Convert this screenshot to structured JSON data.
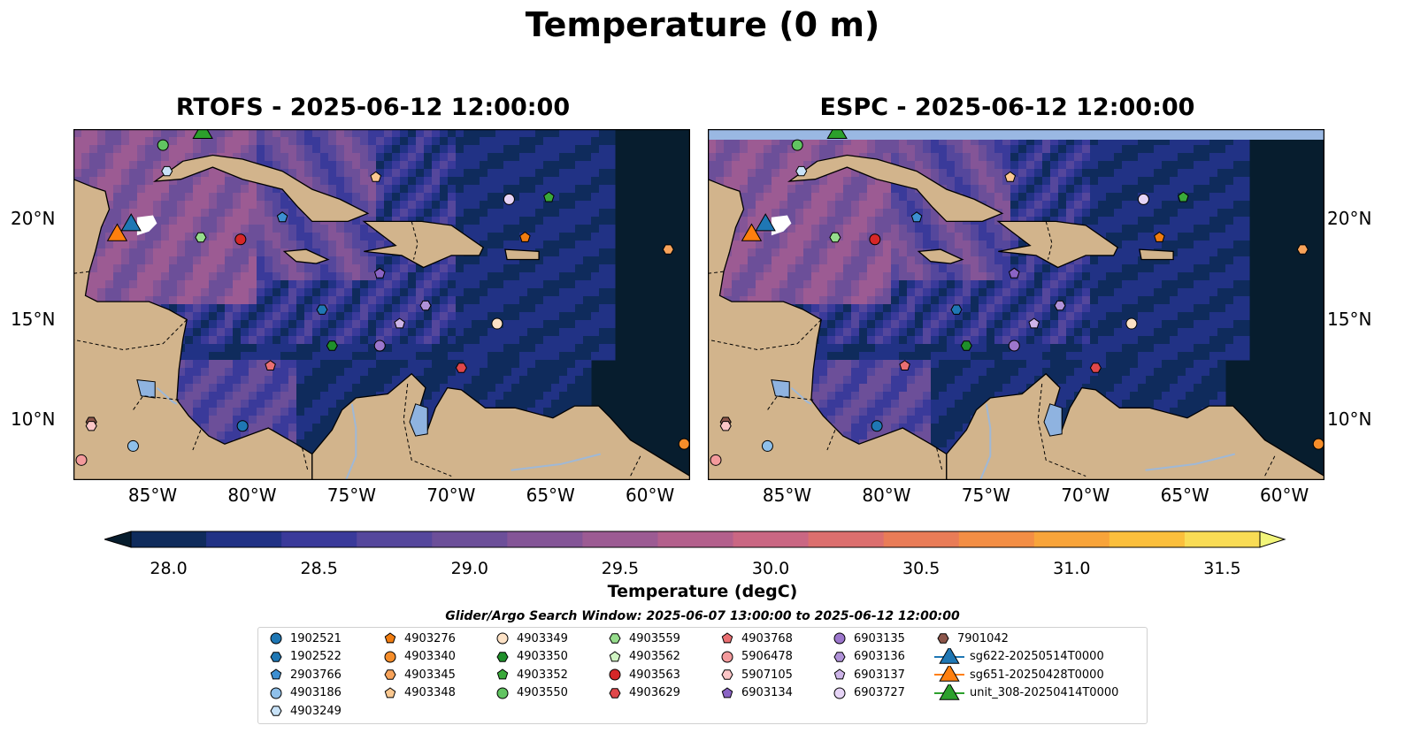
{
  "suptitle": "Temperature (0 m)",
  "panels": [
    {
      "title": "RTOFS - 2025-06-12 12:00:00",
      "left_lat_labels": true
    },
    {
      "title": "ESPC - 2025-06-12 12:00:00",
      "left_lat_labels": false
    }
  ],
  "lon_labels": [
    "85°W",
    "80°W",
    "75°W",
    "70°W",
    "65°W",
    "60°W"
  ],
  "lat_labels": [
    "20°N",
    "15°N",
    "10°N"
  ],
  "map_extent": {
    "lon": [
      -89,
      -58
    ],
    "lat": [
      7,
      24.5
    ]
  },
  "colorbar": {
    "label": "Temperature (degC)",
    "ticks": [
      "28.0",
      "28.5",
      "29.0",
      "29.5",
      "30.0",
      "30.5",
      "31.0",
      "31.5"
    ],
    "min": 28.0,
    "max": 31.5,
    "step": 0.25,
    "colors": [
      "#071d2e",
      "#0f2b5c",
      "#213285",
      "#3a3a9a",
      "#55479c",
      "#6c4f99",
      "#845597",
      "#9c5b93",
      "#b3608c",
      "#ca6783",
      "#dc6f6e",
      "#e97c57",
      "#f38e45",
      "#f8a43a",
      "#fbbf3c",
      "#f9dc55",
      "#f2f57a"
    ]
  },
  "legend_title": "Glider/Argo Search Window: 2025-06-07 13:00:00 to 2025-06-12 12:00:00",
  "legend": [
    {
      "label": "1902521",
      "marker": "circle",
      "color": "#1f77b4"
    },
    {
      "label": "1902522",
      "marker": "hexagon",
      "color": "#1f77b4"
    },
    {
      "label": "2903766",
      "marker": "pentagon",
      "color": "#3d8fd1"
    },
    {
      "label": "4903186",
      "marker": "circle",
      "color": "#8fc0ea"
    },
    {
      "label": "4903249",
      "marker": "hexagon",
      "color": "#c8e2f7"
    },
    {
      "label": "4903276",
      "marker": "pentagon",
      "color": "#f07c10"
    },
    {
      "label": "4903340",
      "marker": "circle",
      "color": "#f58d2a"
    },
    {
      "label": "4903345",
      "marker": "hexagon",
      "color": "#f8a35a"
    },
    {
      "label": "4903348",
      "marker": "pentagon",
      "color": "#fbc890"
    },
    {
      "label": "4903349",
      "marker": "circle",
      "color": "#fde2c6"
    },
    {
      "label": "4903350",
      "marker": "hexagon",
      "color": "#1f8f2a"
    },
    {
      "label": "4903352",
      "marker": "pentagon",
      "color": "#3aa93a"
    },
    {
      "label": "4903550",
      "marker": "circle",
      "color": "#61c461"
    },
    {
      "label": "4903559",
      "marker": "hexagon",
      "color": "#96dd8c"
    },
    {
      "label": "4903562",
      "marker": "pentagon",
      "color": "#d0f4c3"
    },
    {
      "label": "4903563",
      "marker": "circle",
      "color": "#d62728"
    },
    {
      "label": "4903629",
      "marker": "hexagon",
      "color": "#e0474a"
    },
    {
      "label": "4903768",
      "marker": "pentagon",
      "color": "#ea6f72"
    },
    {
      "label": "5906478",
      "marker": "circle",
      "color": "#f39a9c"
    },
    {
      "label": "5907105",
      "marker": "hexagon",
      "color": "#fbc6c7"
    },
    {
      "label": "6903134",
      "marker": "pentagon",
      "color": "#8a63c4"
    },
    {
      "label": "6903135",
      "marker": "circle",
      "color": "#9c76cc"
    },
    {
      "label": "6903136",
      "marker": "hexagon",
      "color": "#b092d8"
    },
    {
      "label": "6903137",
      "marker": "pentagon",
      "color": "#cdb4e8"
    },
    {
      "label": "6903727",
      "marker": "circle",
      "color": "#e6d4f6"
    },
    {
      "label": "7901042",
      "marker": "hexagon",
      "color": "#8c564b"
    },
    {
      "label": "sg622-20250514T0000",
      "marker": "triangle",
      "color": "#1f77b4"
    },
    {
      "label": "sg651-20250428T0000",
      "marker": "triangle",
      "color": "#ff7f0e"
    },
    {
      "label": "unit_308-20250414T0000",
      "marker": "triangle",
      "color": "#2ca02c"
    }
  ],
  "floats": [
    {
      "id": "4903550",
      "lon": -84.5,
      "lat": 23.7
    },
    {
      "id": "4903249",
      "lon": -84.3,
      "lat": 22.4
    },
    {
      "id": "4903348",
      "lon": -73.8,
      "lat": 22.1
    },
    {
      "id": "6903727",
      "lon": -67.1,
      "lat": 21.0
    },
    {
      "id": "4903352",
      "lon": -65.1,
      "lat": 21.1
    },
    {
      "id": "2903766",
      "lon": -78.5,
      "lat": 20.1
    },
    {
      "id": "4903559",
      "lon": -82.6,
      "lat": 19.1
    },
    {
      "id": "4903563",
      "lon": -80.6,
      "lat": 19.0
    },
    {
      "id": "4903276",
      "lon": -66.3,
      "lat": 19.1
    },
    {
      "id": "4903345",
      "lon": -59.1,
      "lat": 18.5
    },
    {
      "id": "6903134",
      "lon": -73.6,
      "lat": 17.3
    },
    {
      "id": "1902522",
      "lon": -76.5,
      "lat": 15.5
    },
    {
      "id": "6903136",
      "lon": -71.3,
      "lat": 15.7
    },
    {
      "id": "6903137",
      "lon": -72.6,
      "lat": 14.8
    },
    {
      "id": "4903349",
      "lon": -67.7,
      "lat": 14.8
    },
    {
      "id": "4903350",
      "lon": -76.0,
      "lat": 13.7
    },
    {
      "id": "6903135",
      "lon": -73.6,
      "lat": 13.7
    },
    {
      "id": "4903768",
      "lon": -79.1,
      "lat": 12.7
    },
    {
      "id": "4903629",
      "lon": -69.5,
      "lat": 12.6
    },
    {
      "id": "7901042",
      "lon": -88.1,
      "lat": 9.9
    },
    {
      "id": "4903186",
      "lon": -86.0,
      "lat": 8.7
    },
    {
      "id": "1902521",
      "lon": -80.5,
      "lat": 9.7
    },
    {
      "id": "5907105",
      "lon": -88.1,
      "lat": 9.7
    },
    {
      "id": "5906478",
      "lon": -88.6,
      "lat": 8.0
    },
    {
      "id": "4903340",
      "lon": -58.3,
      "lat": 8.8
    }
  ],
  "gliders": [
    {
      "id": "sg622-20250514T0000",
      "lon": -86.1,
      "lat": 19.8
    },
    {
      "id": "sg651-20250428T0000",
      "lon": -86.8,
      "lat": 19.3
    },
    {
      "id": "unit_308-20250414T0000",
      "lon": -82.5,
      "lat": 24.4
    }
  ]
}
